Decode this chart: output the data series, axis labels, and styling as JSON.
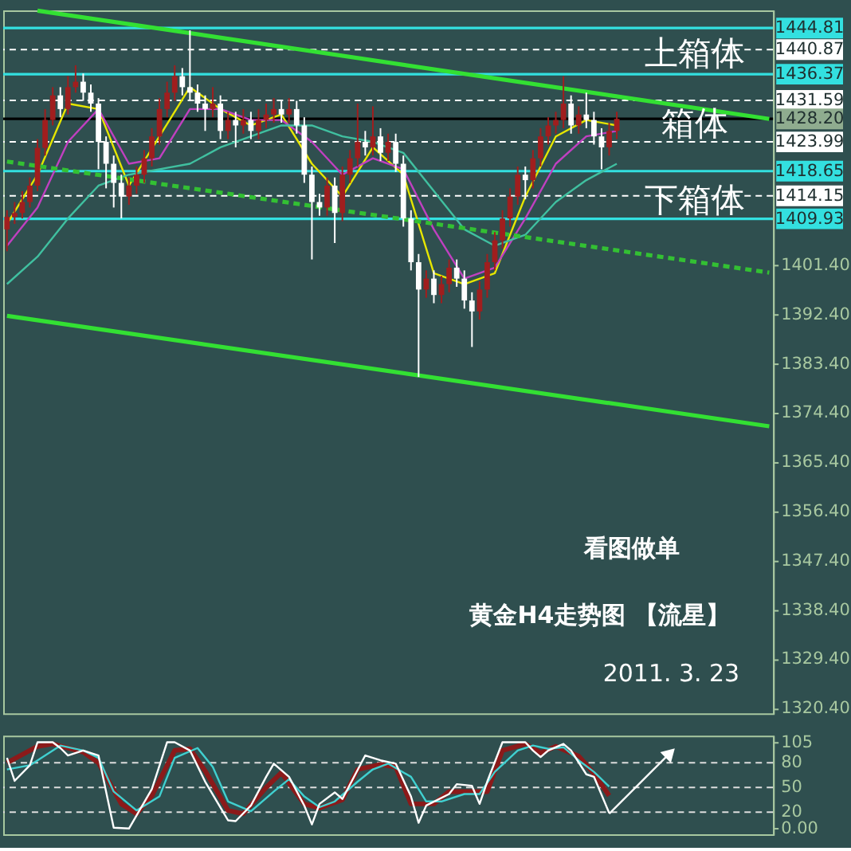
{
  "chart_data": [
    {
      "type": "candlestick",
      "categories": [
        null,
        null,
        null,
        null,
        null,
        null,
        null,
        null,
        null,
        null,
        null,
        null,
        null,
        null,
        null,
        null,
        null,
        null,
        null,
        null,
        null,
        null,
        null,
        null,
        null,
        null,
        null,
        null,
        null,
        null,
        null,
        null,
        null,
        null,
        null,
        null,
        null,
        null,
        null,
        null,
        null,
        null,
        null,
        null,
        null,
        null,
        null,
        null,
        null,
        null,
        null,
        null,
        null,
        null,
        null,
        null,
        null,
        null,
        null,
        null,
        null,
        null,
        null,
        null,
        null,
        null,
        null,
        null,
        null,
        null,
        null,
        null,
        null,
        null,
        null,
        null,
        null,
        null,
        null,
        null,
        null,
        null,
        null,
        null,
        null,
        null,
        null,
        null,
        null,
        null,
        null,
        null,
        null,
        null,
        null,
        null,
        null,
        null,
        null,
        null,
        null
      ],
      "ohlc": [
        [
          1408,
          1411.5,
          1404,
          1410.3
        ],
        [
          1410.3,
          1413,
          1409,
          1411
        ],
        [
          1411,
          1415,
          1410,
          1413
        ],
        [
          1413,
          1417.5,
          1412,
          1416
        ],
        [
          1416,
          1424.5,
          1415,
          1422.9
        ],
        [
          1422.9,
          1430,
          1421.5,
          1428
        ],
        [
          1428,
          1434,
          1427,
          1432.5
        ],
        [
          1432.5,
          1434,
          1428.5,
          1430
        ],
        [
          1430,
          1436,
          1429,
          1434
        ],
        [
          1434,
          1438,
          1433,
          1435
        ],
        [
          1435,
          1436.5,
          1431.5,
          1433
        ],
        [
          1433,
          1434.5,
          1429.5,
          1431
        ],
        [
          1431,
          1432,
          1419,
          1424
        ],
        [
          1424,
          1425,
          1415.5,
          1420
        ],
        [
          1420,
          1421.5,
          1412,
          1416.5
        ],
        [
          1416.5,
          1418,
          1410,
          1414
        ],
        [
          1414,
          1417.5,
          1412.5,
          1416
        ],
        [
          1416,
          1419.5,
          1414.5,
          1418
        ],
        [
          1418,
          1422.5,
          1416.5,
          1421
        ],
        [
          1421,
          1426.5,
          1419.5,
          1425
        ],
        [
          1425,
          1432,
          1423.5,
          1430
        ],
        [
          1430,
          1435,
          1428.5,
          1433
        ],
        [
          1433,
          1438,
          1431.5,
          1436
        ],
        [
          1436,
          1437.5,
          1432.5,
          1434
        ],
        [
          1434,
          1444.4,
          1431.5,
          1433
        ],
        [
          1433,
          1434.5,
          1429.5,
          1431
        ],
        [
          1431,
          1432.5,
          1426,
          1430
        ],
        [
          1430,
          1434,
          1428.5,
          1431
        ],
        [
          1431,
          1432.5,
          1424.5,
          1426
        ],
        [
          1426,
          1429.5,
          1424.5,
          1428
        ],
        [
          1428,
          1429.5,
          1423,
          1427
        ],
        [
          1427,
          1430,
          1425.5,
          1428
        ],
        [
          1428,
          1429.5,
          1424.5,
          1426
        ],
        [
          1426,
          1430,
          1424.5,
          1428
        ],
        [
          1428,
          1431,
          1426.5,
          1429
        ],
        [
          1429,
          1432,
          1427.5,
          1430
        ],
        [
          1430,
          1431.5,
          1427.5,
          1429
        ],
        [
          1429,
          1432,
          1427.5,
          1430
        ],
        [
          1430,
          1431.5,
          1425.5,
          1427
        ],
        [
          1427,
          1428.5,
          1416.5,
          1418
        ],
        [
          1418,
          1419.5,
          1402.5,
          1413
        ],
        [
          1413,
          1414.5,
          1410.5,
          1412
        ],
        [
          1412,
          1417.5,
          1410.5,
          1416
        ],
        [
          1416,
          1417.5,
          1405.5,
          1411
        ],
        [
          1411,
          1419.5,
          1409.5,
          1418
        ],
        [
          1418,
          1422.5,
          1416.5,
          1421
        ],
        [
          1421,
          1431,
          1419.5,
          1424
        ],
        [
          1424,
          1426,
          1421.5,
          1423
        ],
        [
          1423,
          1430.5,
          1421.5,
          1425
        ],
        [
          1425,
          1426.5,
          1420.5,
          1422
        ],
        [
          1422,
          1425.5,
          1420.5,
          1424
        ],
        [
          1424,
          1425.5,
          1418.5,
          1420
        ],
        [
          1420,
          1421.5,
          1408.5,
          1410
        ],
        [
          1410,
          1411.5,
          1400.5,
          1402
        ],
        [
          1402,
          1403.5,
          1381,
          1397
        ],
        [
          1397,
          1400.5,
          1395.5,
          1399
        ],
        [
          1399,
          1400.5,
          1394.5,
          1396
        ],
        [
          1396,
          1399.5,
          1394.5,
          1398
        ],
        [
          1398,
          1402.5,
          1396.5,
          1401
        ],
        [
          1401,
          1402.5,
          1397.5,
          1399
        ],
        [
          1399,
          1400.5,
          1393.5,
          1395
        ],
        [
          1395,
          1396.5,
          1386.5,
          1393
        ],
        [
          1393,
          1398.5,
          1391.5,
          1397
        ],
        [
          1397,
          1403.5,
          1395.5,
          1402
        ],
        [
          1402,
          1407.5,
          1400.5,
          1406
        ],
        [
          1406,
          1411.5,
          1404.5,
          1410
        ],
        [
          1410,
          1415.5,
          1408.5,
          1414
        ],
        [
          1414,
          1419.5,
          1412.5,
          1418
        ],
        [
          1418,
          1419.5,
          1413.5,
          1417
        ],
        [
          1417,
          1422.5,
          1415.5,
          1421
        ],
        [
          1421,
          1426.5,
          1419.5,
          1425
        ],
        [
          1425,
          1428.5,
          1423.5,
          1427
        ],
        [
          1427,
          1429.5,
          1425.5,
          1428
        ],
        [
          1428,
          1436,
          1426.5,
          1431
        ],
        [
          1431,
          1432.5,
          1425.5,
          1427
        ],
        [
          1427,
          1430.5,
          1425.5,
          1429
        ],
        [
          1429,
          1433,
          1426.5,
          1428
        ],
        [
          1428,
          1429.5,
          1423.5,
          1425
        ],
        [
          1425,
          1426.5,
          1419,
          1423
        ],
        [
          1423,
          1427.5,
          1421.5,
          1426
        ],
        [
          1426,
          1429.5,
          1424.5,
          1428.2
        ],
        null,
        null,
        null,
        null,
        null,
        null,
        null,
        null,
        null,
        null,
        null,
        null,
        null,
        null,
        null,
        null,
        null,
        null,
        null,
        null
      ],
      "colors": [
        "#a01e1e",
        "#a01e1e",
        "#a01e1e",
        "#a01e1e",
        "#a01e1e",
        "#a01e1e",
        "#a01e1e",
        "#ffffff",
        "#a01e1e",
        "#a01e1e",
        "#ffffff",
        "#ffffff",
        "#ffffff",
        "#ffffff",
        "#ffffff",
        "#ffffff",
        "#a01e1e",
        "#a01e1e",
        "#a01e1e",
        "#a01e1e",
        "#a01e1e",
        "#a01e1e",
        "#a01e1e",
        "#ffffff",
        "#ffffff",
        "#ffffff",
        "#ffffff",
        "#a01e1e",
        "#ffffff",
        "#a01e1e",
        "#ffffff",
        "#a01e1e",
        "#ffffff",
        "#a01e1e",
        "#a01e1e",
        "#a01e1e",
        "#ffffff",
        "#a01e1e",
        "#ffffff",
        "#ffffff",
        "#ffffff",
        "#ffffff",
        "#a01e1e",
        "#ffffff",
        "#a01e1e",
        "#a01e1e",
        "#a01e1e",
        "#ffffff",
        "#a01e1e",
        "#ffffff",
        "#a01e1e",
        "#ffffff",
        "#ffffff",
        "#ffffff",
        "#ffffff",
        "#a01e1e",
        "#ffffff",
        "#a01e1e",
        "#a01e1e",
        "#ffffff",
        "#ffffff",
        "#ffffff",
        "#a01e1e",
        "#a01e1e",
        "#a01e1e",
        "#a01e1e",
        "#a01e1e",
        "#a01e1e",
        "#ffffff",
        "#a01e1e",
        "#a01e1e",
        "#a01e1e",
        "#a01e1e",
        "#a01e1e",
        "#ffffff",
        "#a01e1e",
        "#ffffff",
        "#ffffff",
        "#ffffff",
        "#a01e1e",
        "#a01e1e",
        null,
        null,
        null,
        null,
        null,
        null,
        null,
        null,
        null,
        null,
        null,
        null,
        null,
        null,
        null,
        null,
        null,
        null,
        null,
        null
      ],
      "series": [
        {
          "type": "line",
          "color": "#e6e600",
          "values": [
            1409,
            null,
            null,
            null,
            1418,
            null,
            null,
            null,
            1431,
            null,
            null,
            null,
            1430,
            null,
            null,
            null,
            1416,
            null,
            null,
            null,
            1425,
            null,
            null,
            null,
            1434,
            null,
            null,
            null,
            1430,
            null,
            null,
            null,
            1427,
            null,
            null,
            null,
            1429,
            null,
            null,
            null,
            1420,
            null,
            null,
            null,
            1414,
            null,
            null,
            null,
            1423,
            null,
            null,
            null,
            1418,
            null,
            null,
            null,
            1400,
            null,
            null,
            null,
            1398,
            null,
            null,
            null,
            1400,
            null,
            null,
            null,
            1414,
            null,
            null,
            null,
            1425,
            null,
            null,
            null,
            1428,
            null,
            null,
            null,
            1427,
            null,
            null,
            null,
            null,
            null,
            null,
            null,
            null,
            null,
            null,
            null,
            null,
            null,
            null,
            null,
            null,
            null,
            null,
            null,
            null
          ]
        },
        {
          "type": "line",
          "color": "#c040c0",
          "values": [
            1405,
            null,
            null,
            null,
            1412,
            null,
            null,
            null,
            1424,
            null,
            null,
            null,
            1430,
            null,
            null,
            null,
            1420,
            null,
            null,
            null,
            1421,
            null,
            null,
            null,
            1430,
            null,
            null,
            null,
            1430,
            null,
            null,
            null,
            1428,
            null,
            null,
            null,
            1428,
            null,
            null,
            null,
            1424,
            null,
            null,
            null,
            1418,
            null,
            null,
            null,
            1421,
            null,
            null,
            null,
            1419,
            null,
            null,
            null,
            1408,
            null,
            null,
            null,
            1399,
            null,
            null,
            null,
            1401,
            null,
            null,
            null,
            1410,
            null,
            null,
            null,
            1420,
            null,
            null,
            null,
            1425,
            null,
            null,
            null,
            1426,
            null,
            null,
            null,
            null,
            null,
            null,
            null,
            null,
            null,
            null,
            null,
            null,
            null,
            null,
            null,
            null,
            null,
            null,
            null,
            null
          ]
        },
        {
          "type": "line",
          "color": "#40c0a0",
          "values": [
            1398,
            null,
            null,
            null,
            1403,
            null,
            null,
            null,
            1410,
            null,
            null,
            null,
            1416,
            null,
            null,
            null,
            1418,
            null,
            null,
            null,
            1419,
            null,
            null,
            null,
            1420,
            null,
            null,
            null,
            1423,
            null,
            null,
            null,
            1425,
            null,
            null,
            null,
            1427,
            null,
            null,
            null,
            1427,
            null,
            null,
            null,
            1425,
            null,
            null,
            null,
            1424,
            null,
            null,
            null,
            1422,
            null,
            null,
            null,
            1415,
            null,
            null,
            null,
            1408,
            null,
            null,
            null,
            1405,
            null,
            null,
            null,
            1407,
            null,
            null,
            null,
            1413,
            null,
            null,
            null,
            1417,
            null,
            null,
            null,
            1420,
            null,
            null,
            null,
            null,
            null,
            null,
            null,
            null,
            null,
            null,
            null,
            null,
            null,
            null,
            null,
            null,
            null,
            null,
            null,
            null
          ]
        },
        {
          "type": "line",
          "color": "#33e033",
          "values": [
            null,
            null,
            null,
            null,
            1448,
            null,
            null,
            null,
            null,
            null,
            null,
            null,
            null,
            null,
            null,
            null,
            null,
            null,
            null,
            null,
            null,
            null,
            null,
            null,
            null,
            null,
            null,
            null,
            null,
            null,
            null,
            null,
            null,
            null,
            null,
            null,
            null,
            null,
            null,
            null,
            null,
            null,
            null,
            null,
            null,
            null,
            null,
            null,
            null,
            null,
            null,
            null,
            null,
            null,
            null,
            null,
            null,
            null,
            null,
            null,
            null,
            null,
            null,
            null,
            null,
            null,
            null,
            null,
            null,
            null,
            null,
            null,
            null,
            null,
            null,
            null,
            null,
            null,
            null,
            null,
            null,
            null,
            null,
            null,
            null,
            null,
            null,
            null,
            null,
            null,
            null,
            null,
            null,
            null,
            null,
            null,
            null,
            null,
            null,
            null,
            1428.2
          ]
        },
        {
          "type": "line",
          "color": "#33e033",
          "values": [
            1392.2,
            null,
            null,
            null,
            null,
            null,
            null,
            null,
            null,
            null,
            null,
            null,
            null,
            null,
            null,
            null,
            null,
            null,
            null,
            null,
            null,
            null,
            null,
            null,
            null,
            null,
            null,
            null,
            null,
            null,
            null,
            null,
            null,
            null,
            null,
            null,
            null,
            null,
            null,
            null,
            null,
            null,
            null,
            null,
            null,
            null,
            null,
            null,
            null,
            null,
            null,
            null,
            null,
            null,
            null,
            null,
            null,
            null,
            null,
            null,
            null,
            null,
            null,
            null,
            null,
            null,
            null,
            null,
            null,
            null,
            null,
            null,
            null,
            null,
            null,
            null,
            null,
            null,
            null,
            null,
            null,
            null,
            null,
            null,
            null,
            null,
            null,
            null,
            null,
            null,
            null,
            null,
            null,
            null,
            null,
            null,
            null,
            null,
            null,
            null,
            1372
          ]
        },
        {
          "type": "line",
          "color": "#33c033",
          "line_style": "dashed",
          "values": [
            1420.4,
            null,
            null,
            null,
            null,
            null,
            null,
            null,
            null,
            null,
            null,
            null,
            null,
            null,
            null,
            null,
            null,
            null,
            null,
            null,
            null,
            null,
            null,
            null,
            null,
            null,
            null,
            null,
            null,
            null,
            null,
            null,
            null,
            null,
            null,
            null,
            null,
            null,
            null,
            null,
            null,
            null,
            null,
            null,
            null,
            null,
            null,
            null,
            null,
            null,
            null,
            null,
            null,
            null,
            null,
            null,
            null,
            null,
            null,
            null,
            null,
            null,
            null,
            null,
            null,
            null,
            null,
            null,
            null,
            null,
            null,
            null,
            null,
            null,
            null,
            null,
            null,
            null,
            null,
            null,
            null,
            null,
            null,
            null,
            null,
            null,
            null,
            null,
            null,
            null,
            null,
            null,
            null,
            null,
            null,
            null,
            null,
            null,
            null,
            null,
            1400.1
          ]
        }
      ],
      "ref_lines": [
        {
          "axis": "y",
          "value": 1444.81,
          "label": "1444.81",
          "color": "#33e0e0",
          "line_style": "solid"
        },
        {
          "axis": "y",
          "value": 1440.87,
          "label": "1440.87",
          "color": "#ffffff",
          "line_style": "dashed"
        },
        {
          "axis": "y",
          "value": 1436.37,
          "label": "1436.37",
          "color": "#33e0e0",
          "line_style": "solid"
        },
        {
          "axis": "y",
          "value": 1431.59,
          "label": "1431.59",
          "color": "#ffffff",
          "line_style": "dashed"
        },
        {
          "axis": "y",
          "value": 1428.2,
          "label": "1428.20",
          "color": "#000000",
          "line_style": "solid"
        },
        {
          "axis": "y",
          "value": 1423.99,
          "label": "1423.99",
          "color": "#ffffff",
          "line_style": "dashed"
        },
        {
          "axis": "y",
          "value": 1418.65,
          "label": "1418.65",
          "color": "#33e0e0",
          "line_style": "solid"
        },
        {
          "axis": "y",
          "value": 1414.15,
          "label": "1414.15",
          "color": "#ffffff",
          "line_style": "dashed"
        },
        {
          "axis": "y",
          "value": 1409.93,
          "label": "1409.93",
          "color": "#33e0e0",
          "line_style": "solid"
        }
      ],
      "annotations": [
        "上箱体",
        "箱体",
        "下箱体",
        "看图做单",
        "黄金H4走势图 【流星】",
        "2011. 3. 23"
      ],
      "ylim": [
        1319.5,
        1448.05
      ],
      "yticks": [
        {
          "value": 1320.4,
          "label": "1320.40"
        },
        {
          "value": 1329.4,
          "label": "1329.40"
        },
        {
          "value": 1338.4,
          "label": "1338.40"
        },
        {
          "value": 1347.4,
          "label": "1347.40"
        },
        {
          "value": 1356.4,
          "label": "1356.40"
        },
        {
          "value": 1365.4,
          "label": "1365.40"
        },
        {
          "value": 1374.4,
          "label": "1374.40"
        },
        {
          "value": 1383.4,
          "label": "1383.40"
        },
        {
          "value": 1392.4,
          "label": "1392.40"
        },
        {
          "value": 1401.4,
          "label": "1401.40"
        }
      ],
      "grid": false,
      "tick_labels": "y"
    },
    {
      "type": "line",
      "categories": [
        null,
        null,
        null,
        null,
        null,
        null,
        null,
        null,
        null,
        null,
        null,
        null,
        null,
        null,
        null,
        null,
        null,
        null,
        null,
        null,
        null,
        null,
        null,
        null,
        null,
        null,
        null,
        null,
        null,
        null,
        null,
        null,
        null,
        null,
        null,
        null,
        null,
        null,
        null,
        null,
        null,
        null,
        null,
        null,
        null,
        null,
        null,
        null,
        null,
        null,
        null,
        null,
        null,
        null,
        null,
        null,
        null,
        null,
        null,
        null,
        null,
        null,
        null,
        null,
        null,
        null,
        null,
        null,
        null,
        null,
        null,
        null,
        null,
        null,
        null,
        null,
        null,
        null,
        null,
        null,
        null,
        null,
        null,
        null,
        null,
        null,
        null,
        null,
        null,
        null,
        null,
        null,
        null,
        null,
        null,
        null,
        null,
        null,
        null,
        null,
        null
      ],
      "series": [
        {
          "color": "#8b1a1a",
          "values": [
            80,
            null,
            null,
            null,
            100,
            null,
            103,
            null,
            null,
            null,
            93,
            null,
            80,
            null,
            null,
            30,
            null,
            18,
            null,
            40,
            null,
            null,
            95,
            null,
            97,
            null,
            70,
            null,
            null,
            22,
            null,
            18,
            null,
            null,
            50,
            null,
            68,
            null,
            null,
            30,
            null,
            25,
            null,
            null,
            35,
            null,
            72,
            null,
            null,
            78,
            null,
            75,
            null,
            30,
            null,
            null,
            30,
            null,
            45,
            null,
            null,
            45,
            null,
            45,
            null,
            95,
            null,
            null,
            103,
            null,
            92,
            null,
            100,
            null,
            null,
            88,
            null,
            67,
            null,
            40,
            null,
            null,
            null,
            null,
            null,
            null,
            null,
            null,
            null,
            null,
            null,
            null,
            null,
            null,
            null,
            null,
            null,
            null,
            null,
            null,
            null
          ]
        },
        {
          "color": "#40d0d0",
          "values": [
            72,
            null,
            null,
            77,
            null,
            null,
            null,
            101,
            null,
            null,
            95,
            null,
            86,
            null,
            45,
            null,
            null,
            22,
            null,
            null,
            39,
            null,
            86,
            null,
            null,
            98,
            null,
            75,
            null,
            33,
            null,
            null,
            21,
            null,
            null,
            45,
            null,
            60,
            null,
            39,
            null,
            26,
            null,
            33,
            null,
            null,
            57,
            null,
            72,
            null,
            79,
            null,
            null,
            63,
            null,
            33,
            null,
            33,
            null,
            null,
            42,
            null,
            42,
            null,
            69,
            null,
            null,
            95,
            null,
            101,
            null,
            97,
            null,
            99,
            null,
            83,
            null,
            69,
            null,
            51,
            null,
            null,
            null,
            null,
            null,
            null,
            null,
            null,
            null,
            null,
            null,
            null,
            null,
            null,
            null,
            null,
            null,
            null,
            null,
            null,
            null
          ]
        },
        {
          "color": "#ffffff",
          "values": [
            86,
            58,
            null,
            77,
            105,
            null,
            105,
            98,
            89,
            null,
            95,
            null,
            89,
            45,
            1,
            null,
            0,
            16,
            null,
            48,
            null,
            105,
            105,
            null,
            95,
            null,
            57,
            null,
            null,
            10,
            9,
            null,
            28,
            null,
            63,
            79,
            null,
            63,
            null,
            28,
            5,
            30,
            null,
            44,
            36,
            null,
            null,
            89,
            null,
            83,
            null,
            79,
            null,
            39,
            7,
            28,
            null,
            null,
            42,
            54,
            null,
            52,
            30,
            57,
            null,
            105,
            null,
            null,
            105,
            95,
            87,
            95,
            null,
            103,
            95,
            null,
            66,
            63,
            null,
            19,
            null,
            null,
            null,
            null,
            null,
            null,
            null,
            null,
            null,
            null,
            null,
            null,
            null,
            null,
            null,
            null,
            null,
            null,
            null,
            null,
            null
          ]
        },
        {
          "color": "#ffffff",
          "marker": "triangle",
          "values": [
            null,
            null,
            null,
            null,
            null,
            null,
            null,
            null,
            null,
            null,
            null,
            null,
            null,
            null,
            null,
            null,
            null,
            null,
            null,
            null,
            null,
            null,
            null,
            null,
            null,
            null,
            null,
            null,
            null,
            null,
            null,
            null,
            null,
            null,
            null,
            null,
            null,
            null,
            null,
            null,
            null,
            null,
            null,
            null,
            null,
            null,
            null,
            null,
            null,
            null,
            null,
            null,
            null,
            null,
            null,
            null,
            null,
            null,
            null,
            null,
            null,
            null,
            null,
            null,
            null,
            null,
            null,
            null,
            null,
            null,
            null,
            null,
            null,
            null,
            null,
            null,
            null,
            null,
            null,
            18,
            null,
            null,
            null,
            null,
            null,
            null,
            null,
            92,
            null,
            null,
            null,
            null,
            null,
            null,
            null,
            null,
            null,
            null,
            null,
            null,
            null
          ]
        }
      ],
      "ref_lines": [
        {
          "axis": "y",
          "value": 80,
          "color": "#dddddd",
          "line_style": "dashed"
        },
        {
          "axis": "y",
          "value": 50,
          "color": "#dddddd",
          "line_style": "dashed"
        },
        {
          "axis": "y",
          "value": 20,
          "color": "#dddddd",
          "line_style": "dashed"
        }
      ],
      "ylim": [
        -7,
        113
      ],
      "yticks": [
        105,
        80,
        50,
        20,
        {
          "value": 0,
          "label": "0.00"
        }
      ],
      "grid": false,
      "tick_labels": "y"
    }
  ]
}
